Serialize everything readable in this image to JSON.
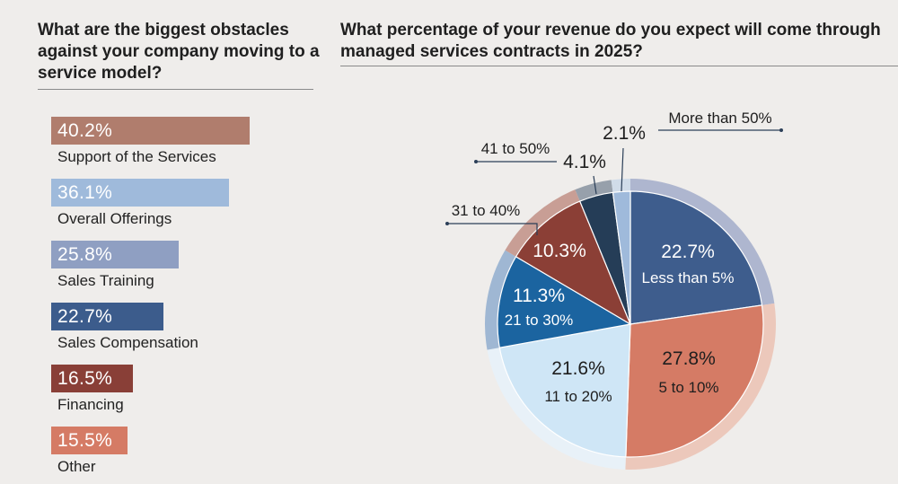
{
  "left_title": "What are the biggest obstacles against your company moving to a service model?",
  "right_title": "What percentage of your revenue do you expect will come through managed services contracts in 2025?",
  "chart_data": [
    {
      "type": "bar",
      "orientation": "horizontal",
      "title": "What are the biggest obstacles against your company moving to a service model?",
      "categories": [
        "Support of the Services",
        "Overall Offerings",
        "Sales Training",
        "Sales Compensation",
        "Financing",
        "Other"
      ],
      "values": [
        40.2,
        36.1,
        25.8,
        22.7,
        16.5,
        15.5
      ],
      "value_labels": [
        "40.2%",
        "36.1%",
        "25.8%",
        "22.7%",
        "16.5%",
        "15.5%"
      ],
      "colors": [
        "#b07d6d",
        "#9fbadb",
        "#8f9fc2",
        "#3c5c8c",
        "#893f37",
        "#d57b65"
      ],
      "unit": "%"
    },
    {
      "type": "pie",
      "title": "What percentage of your revenue do you expect will come through managed services contracts in 2025?",
      "categories": [
        "Less than 5%",
        "5 to 10%",
        "11 to 20%",
        "21 to 30%",
        "31 to 40%",
        "41 to 50%",
        "More than 50%"
      ],
      "values": [
        22.7,
        27.8,
        21.6,
        11.3,
        10.3,
        4.1,
        2.1
      ],
      "value_labels": [
        "22.7%",
        "27.8%",
        "21.6%",
        "11.3%",
        "10.3%",
        "4.1%",
        "2.1%"
      ],
      "colors": [
        "#3e5d8d",
        "#d57b65",
        "#cfe6f6",
        "#1b64a0",
        "#8b3f36",
        "#253d57",
        "#9fbadb"
      ],
      "ring_colors": [
        "#aeb6cf",
        "#ecc8bb",
        "#e8f1f8",
        "#9fb7d3",
        "#c89e95",
        "#97a0ab",
        "#d0dce9"
      ],
      "unit": "%"
    }
  ]
}
